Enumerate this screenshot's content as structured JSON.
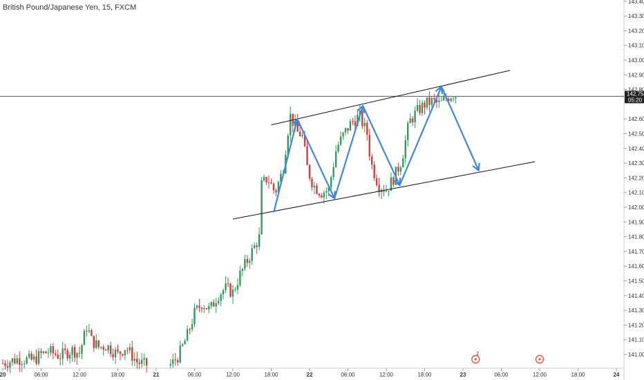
{
  "chart_data": {
    "type": "candlestick",
    "title": "British Pound/Japanese Yen, 15, FXCM",
    "y_axis": {
      "range": [
        140.9,
        143.43
      ],
      "ticks": [
        "143.400",
        "143.300",
        "143.200",
        "143.100",
        "143.000",
        "142.900",
        "142.800",
        "142.600",
        "142.500",
        "142.400",
        "142.300",
        "142.200",
        "142.100",
        "142.000",
        "141.900",
        "141.800",
        "141.700",
        "141.600",
        "141.500",
        "141.400",
        "141.300",
        "141.200",
        "141.100",
        "141.000"
      ]
    },
    "x_axis": {
      "range": [
        0,
        16
      ],
      "ticks": [
        {
          "label": "20",
          "x": 0,
          "bold": true
        },
        {
          "label": "06:00",
          "x": 1
        },
        {
          "label": "12:00",
          "x": 2
        },
        {
          "label": "18:00",
          "x": 3
        },
        {
          "label": "21",
          "x": 4,
          "bold": true
        },
        {
          "label": "06:00",
          "x": 5
        },
        {
          "label": "12:00",
          "x": 6
        },
        {
          "label": "18:00",
          "x": 7
        },
        {
          "label": "22",
          "x": 8,
          "bold": true
        },
        {
          "label": "06:00",
          "x": 9
        },
        {
          "label": "12:00",
          "x": 10
        },
        {
          "label": "18:00",
          "x": 11
        },
        {
          "label": "23",
          "x": 12,
          "bold": true
        },
        {
          "label": "06:00",
          "x": 13
        },
        {
          "label": "12:00",
          "x": 14
        },
        {
          "label": "18:00",
          "x": 15
        },
        {
          "label": "24",
          "x": 16,
          "bold": true
        }
      ]
    },
    "price_line": {
      "value": 142.754,
      "label": "142.754",
      "countdown": "05:20"
    },
    "colors": {
      "up": "#2e9d5a",
      "down": "#d43b3b",
      "arrow": "#3e87e0",
      "channel": "#111111",
      "badge": "#e0563f"
    },
    "price_path": [
      [
        0.0,
        140.94
      ],
      [
        0.4,
        140.97
      ],
      [
        0.8,
        140.96
      ],
      [
        1.0,
        141.0
      ],
      [
        1.2,
        141.02
      ],
      [
        1.5,
        140.99
      ],
      [
        1.8,
        141.03
      ],
      [
        2.0,
        141.01
      ],
      [
        2.1,
        141.1
      ],
      [
        2.2,
        141.2
      ],
      [
        2.3,
        141.1
      ],
      [
        2.5,
        141.05
      ],
      [
        2.7,
        141.06
      ],
      [
        3.0,
        141.0
      ],
      [
        3.2,
        141.05
      ],
      [
        3.5,
        140.95
      ],
      [
        3.7,
        140.93
      ],
      [
        4.4,
        140.93
      ],
      [
        4.6,
        141.0
      ],
      [
        4.8,
        141.12
      ],
      [
        5.0,
        141.28
      ],
      [
        5.2,
        141.35
      ],
      [
        5.4,
        141.3
      ],
      [
        5.6,
        141.4
      ],
      [
        5.8,
        141.45
      ],
      [
        6.0,
        141.42
      ],
      [
        6.2,
        141.55
      ],
      [
        6.5,
        141.7
      ],
      [
        6.7,
        141.8
      ],
      [
        6.75,
        142.15
      ],
      [
        6.9,
        142.2
      ],
      [
        7.1,
        142.1
      ],
      [
        7.3,
        142.25
      ],
      [
        7.45,
        142.55
      ],
      [
        7.5,
        142.62
      ],
      [
        7.7,
        142.5
      ],
      [
        7.8,
        142.5
      ],
      [
        7.95,
        142.25
      ],
      [
        8.1,
        142.15
      ],
      [
        8.3,
        142.1
      ],
      [
        8.5,
        142.12
      ],
      [
        8.7,
        142.4
      ],
      [
        8.9,
        142.5
      ],
      [
        9.1,
        142.58
      ],
      [
        9.3,
        142.62
      ],
      [
        9.5,
        142.5
      ],
      [
        9.6,
        142.3
      ],
      [
        9.8,
        142.15
      ],
      [
        10.0,
        142.12
      ],
      [
        10.2,
        142.2
      ],
      [
        10.4,
        142.32
      ],
      [
        10.6,
        142.58
      ],
      [
        10.8,
        142.65
      ],
      [
        11.0,
        142.7
      ],
      [
        11.2,
        142.72
      ],
      [
        11.4,
        142.7
      ],
      [
        11.6,
        142.75
      ],
      [
        11.75,
        142.77
      ],
      [
        11.85,
        142.755
      ]
    ],
    "trendlines": [
      {
        "from": [
          6.0,
          141.92
        ],
        "to": [
          13.88,
          142.31
        ]
      },
      {
        "from": [
          7.0,
          142.56
        ],
        "to": [
          13.23,
          142.93
        ]
      }
    ],
    "arrows": [
      {
        "from": [
          7.07,
          141.97
        ],
        "to": [
          7.68,
          142.6
        ]
      },
      {
        "from": [
          7.68,
          142.6
        ],
        "to": [
          8.65,
          142.06
        ]
      },
      {
        "from": [
          8.65,
          142.06
        ],
        "to": [
          9.39,
          142.69
        ]
      },
      {
        "from": [
          9.39,
          142.69
        ],
        "to": [
          10.35,
          142.15
        ]
      },
      {
        "from": [
          10.35,
          142.15
        ],
        "to": [
          11.44,
          142.82
        ]
      },
      {
        "from": [
          11.44,
          142.82
        ],
        "to": [
          12.41,
          142.25
        ]
      }
    ],
    "events": [
      {
        "label": "2",
        "x": 12.33
      },
      {
        "label": "",
        "x": 14.0
      }
    ]
  }
}
